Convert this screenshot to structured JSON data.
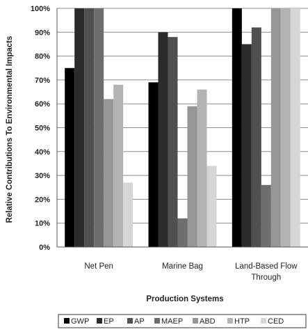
{
  "chart_data": {
    "type": "bar",
    "title": "",
    "xlabel": "Production Systems",
    "ylabel": "Relative Contributions To Environmental Impacts",
    "ylim": [
      0,
      100
    ],
    "y_ticks": [
      "0%",
      "10%",
      "20%",
      "30%",
      "40%",
      "50%",
      "60%",
      "70%",
      "80%",
      "90%",
      "100%"
    ],
    "categories": [
      "Net Pen",
      "Marine Bag",
      "Land-Based Flow Through"
    ],
    "category_label_lines": [
      [
        "Net Pen"
      ],
      [
        "Marine Bag"
      ],
      [
        "Land-Based Flow",
        "Through"
      ]
    ],
    "series": [
      {
        "name": "GWP",
        "color": "#000000",
        "values": [
          75,
          69,
          100
        ]
      },
      {
        "name": "EP",
        "color": "#2b2b2b",
        "values": [
          100,
          90,
          85
        ]
      },
      {
        "name": "AP",
        "color": "#505050",
        "values": [
          100,
          88,
          92
        ]
      },
      {
        "name": "MAEP",
        "color": "#6e6e6e",
        "values": [
          100,
          12,
          26
        ]
      },
      {
        "name": "ABD",
        "color": "#969696",
        "values": [
          62,
          59,
          100
        ]
      },
      {
        "name": "HTP",
        "color": "#b3b3b3",
        "values": [
          68,
          66,
          100
        ]
      },
      {
        "name": "CED",
        "color": "#d6d6d6",
        "values": [
          27,
          34,
          100
        ]
      }
    ],
    "grid": true,
    "legend_position": "bottom"
  }
}
